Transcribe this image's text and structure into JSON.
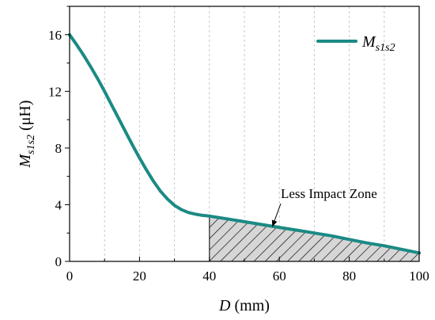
{
  "chart_data": {
    "type": "line",
    "series": [
      {
        "name": "M_s1s2",
        "name_main": "M",
        "name_sub": "s1s2",
        "color": "#1b8a84",
        "x": [
          0,
          2,
          4,
          6,
          8,
          10,
          12,
          14,
          16,
          18,
          20,
          22,
          24,
          26,
          28,
          30,
          32,
          34,
          36,
          38,
          40,
          45,
          50,
          55,
          60,
          65,
          70,
          75,
          80,
          85,
          90,
          95,
          100
        ],
        "y": [
          16.0,
          15.3,
          14.55,
          13.75,
          12.9,
          12.0,
          11.05,
          10.1,
          9.15,
          8.2,
          7.3,
          6.45,
          5.65,
          4.95,
          4.4,
          3.95,
          3.65,
          3.45,
          3.33,
          3.25,
          3.2,
          3.0,
          2.8,
          2.6,
          2.4,
          2.2,
          2.0,
          1.8,
          1.55,
          1.3,
          1.1,
          0.85,
          0.6
        ]
      }
    ],
    "xlabel_var": "D",
    "xlabel_unit": "(mm)",
    "ylabel_var": "M",
    "ylabel_sub": "s1s2",
    "ylabel_unit": "(μH)",
    "xlim": [
      0,
      100
    ],
    "ylim": [
      0,
      18
    ],
    "xticks": [
      0,
      20,
      40,
      60,
      80,
      100
    ],
    "yticks": [
      0,
      4,
      8,
      12,
      16
    ],
    "grid_x": [
      10,
      20,
      30,
      40,
      50,
      60,
      70,
      80,
      90
    ],
    "shaded_region": {
      "x_start": 40,
      "x_end": 100,
      "pattern": "diagonal-hatch",
      "fill": "#d6d6d6"
    },
    "annotation": {
      "text": "Less Impact Zone",
      "arrow_target": [
        58,
        2.45
      ]
    },
    "legend_position": "top-right"
  }
}
